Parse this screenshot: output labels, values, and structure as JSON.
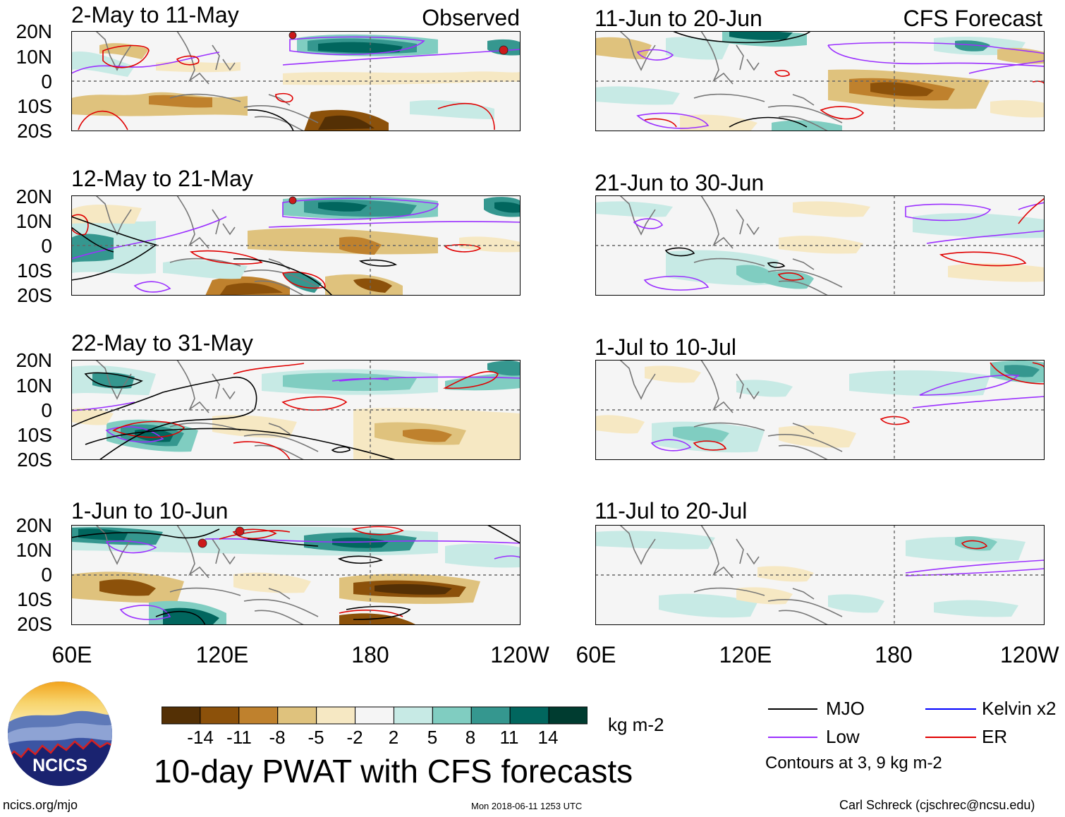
{
  "colors": {
    "mjo": "#000000",
    "low": "#9b30ff",
    "kelvin": "#0000ff",
    "er": "#e00000",
    "scale": [
      "#543005",
      "#8c510a",
      "#bf812d",
      "#dfc27d",
      "#f6e8c3",
      "#f5f5f5",
      "#c7eae5",
      "#80cdc1",
      "#35978f",
      "#01665e",
      "#003c30"
    ]
  },
  "chart_data": {
    "type": "heatmap",
    "title": "10-day PWAT with CFS forecasts",
    "units": "kg m-2",
    "longitudes": [
      "60E",
      "120E",
      "180",
      "120W"
    ],
    "latitudes": [
      "20N",
      "10N",
      "0",
      "10S",
      "20S"
    ],
    "lon_range": [
      60,
      240
    ],
    "lat_range": [
      -20,
      20
    ],
    "observed_label": "Observed",
    "forecast_label": "CFS Forecast",
    "panels": {
      "observed": [
        {
          "period": "2-May to 11-May"
        },
        {
          "period": "12-May to 21-May"
        },
        {
          "period": "22-May to 31-May"
        },
        {
          "period": "1-Jun to 10-Jun"
        }
      ],
      "forecast": [
        {
          "period": "11-Jun to 20-Jun"
        },
        {
          "period": "21-Jun to 30-Jun"
        },
        {
          "period": "1-Jul to 10-Jul"
        },
        {
          "period": "11-Jul to 20-Jul"
        }
      ]
    },
    "colorbar": {
      "ticks": [
        "-14",
        "-11",
        "-8",
        "-5",
        "-2",
        "2",
        "5",
        "8",
        "11",
        "14"
      ]
    },
    "legend": [
      {
        "label": "MJO",
        "color": "#000000"
      },
      {
        "label": "Kelvin x2",
        "color": "#0000ff"
      },
      {
        "label": "Low",
        "color": "#9b30ff"
      },
      {
        "label": "ER",
        "color": "#e00000"
      }
    ],
    "contour_note": "Contours at 3, 9 kg m-2"
  },
  "logo": {
    "text": "NCICS"
  },
  "footer": {
    "site": "ncics.org/mjo",
    "timestamp": "Mon 2018-06-11 1253 UTC",
    "author": "Carl Schreck (cjschrec@ncsu.edu)"
  }
}
